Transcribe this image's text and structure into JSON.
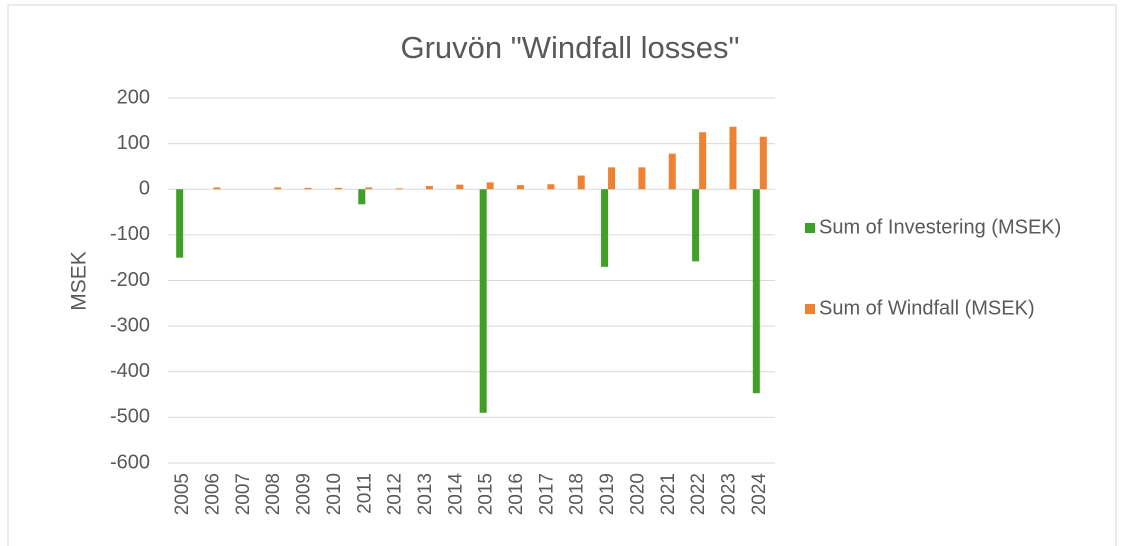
{
  "chart_data": {
    "type": "bar",
    "title": "Gruvön \"Windfall losses\"",
    "y_label": "MSEK",
    "categories": [
      "2005",
      "2006",
      "2007",
      "2008",
      "2009",
      "2010",
      "2011",
      "2012",
      "2013",
      "2014",
      "2015",
      "2016",
      "2017",
      "2018",
      "2019",
      "2020",
      "2021",
      "2022",
      "2023",
      "2024"
    ],
    "series": [
      {
        "name": "Sum of Investering (MSEK)",
        "color": "#3f9f27",
        "values": [
          -150,
          null,
          null,
          null,
          null,
          null,
          -33,
          null,
          null,
          null,
          -490,
          null,
          null,
          null,
          -170,
          null,
          null,
          -158,
          null,
          -447
        ]
      },
      {
        "name": "Sum of Windfall (MSEK)",
        "color": "#ee8232",
        "values": [
          null,
          4,
          null,
          4,
          3,
          3,
          4,
          2,
          7,
          10,
          15,
          9,
          11,
          30,
          48,
          48,
          78,
          125,
          137,
          115
        ]
      }
    ],
    "ylim": [
      -600,
      200
    ],
    "yticks": [
      -600,
      -500,
      -400,
      -300,
      -200,
      -100,
      0,
      100,
      200
    ],
    "grid": true,
    "legend": "right"
  }
}
